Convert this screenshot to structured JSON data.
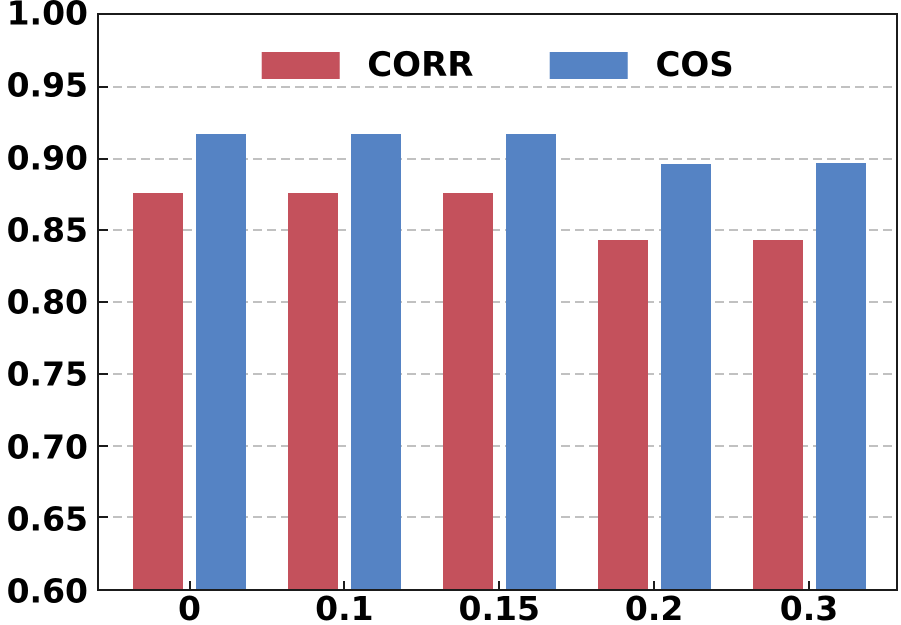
{
  "chart_data": {
    "type": "bar",
    "title": "",
    "xlabel": "",
    "ylabel": "",
    "categories": [
      "0",
      "0.1",
      "0.15",
      "0.2",
      "0.3"
    ],
    "series": [
      {
        "name": "CORR",
        "color": "#c4515c",
        "values": [
          0.876,
          0.876,
          0.876,
          0.843,
          0.843
        ]
      },
      {
        "name": "COS",
        "color": "#5583c4",
        "values": [
          0.917,
          0.917,
          0.917,
          0.896,
          0.897
        ]
      }
    ],
    "ylim": [
      0.6,
      1.0
    ],
    "yticks": [
      1.0,
      0.95,
      0.9,
      0.85,
      0.8,
      0.75,
      0.7,
      0.65,
      0.6
    ],
    "ytick_labels": [
      "1.00",
      "0.95",
      "0.90",
      "0.85",
      "0.80",
      "0.75",
      "0.70",
      "0.65",
      "0.60"
    ],
    "grid": "horizontal-dashed",
    "grid_color": "#c1c1c1",
    "axis_color": "#1b1b1b",
    "text_color": "#000000",
    "background": "#ffffff",
    "legend_position": "upper-center",
    "legend_labels": [
      "CORR",
      "COS"
    ]
  }
}
